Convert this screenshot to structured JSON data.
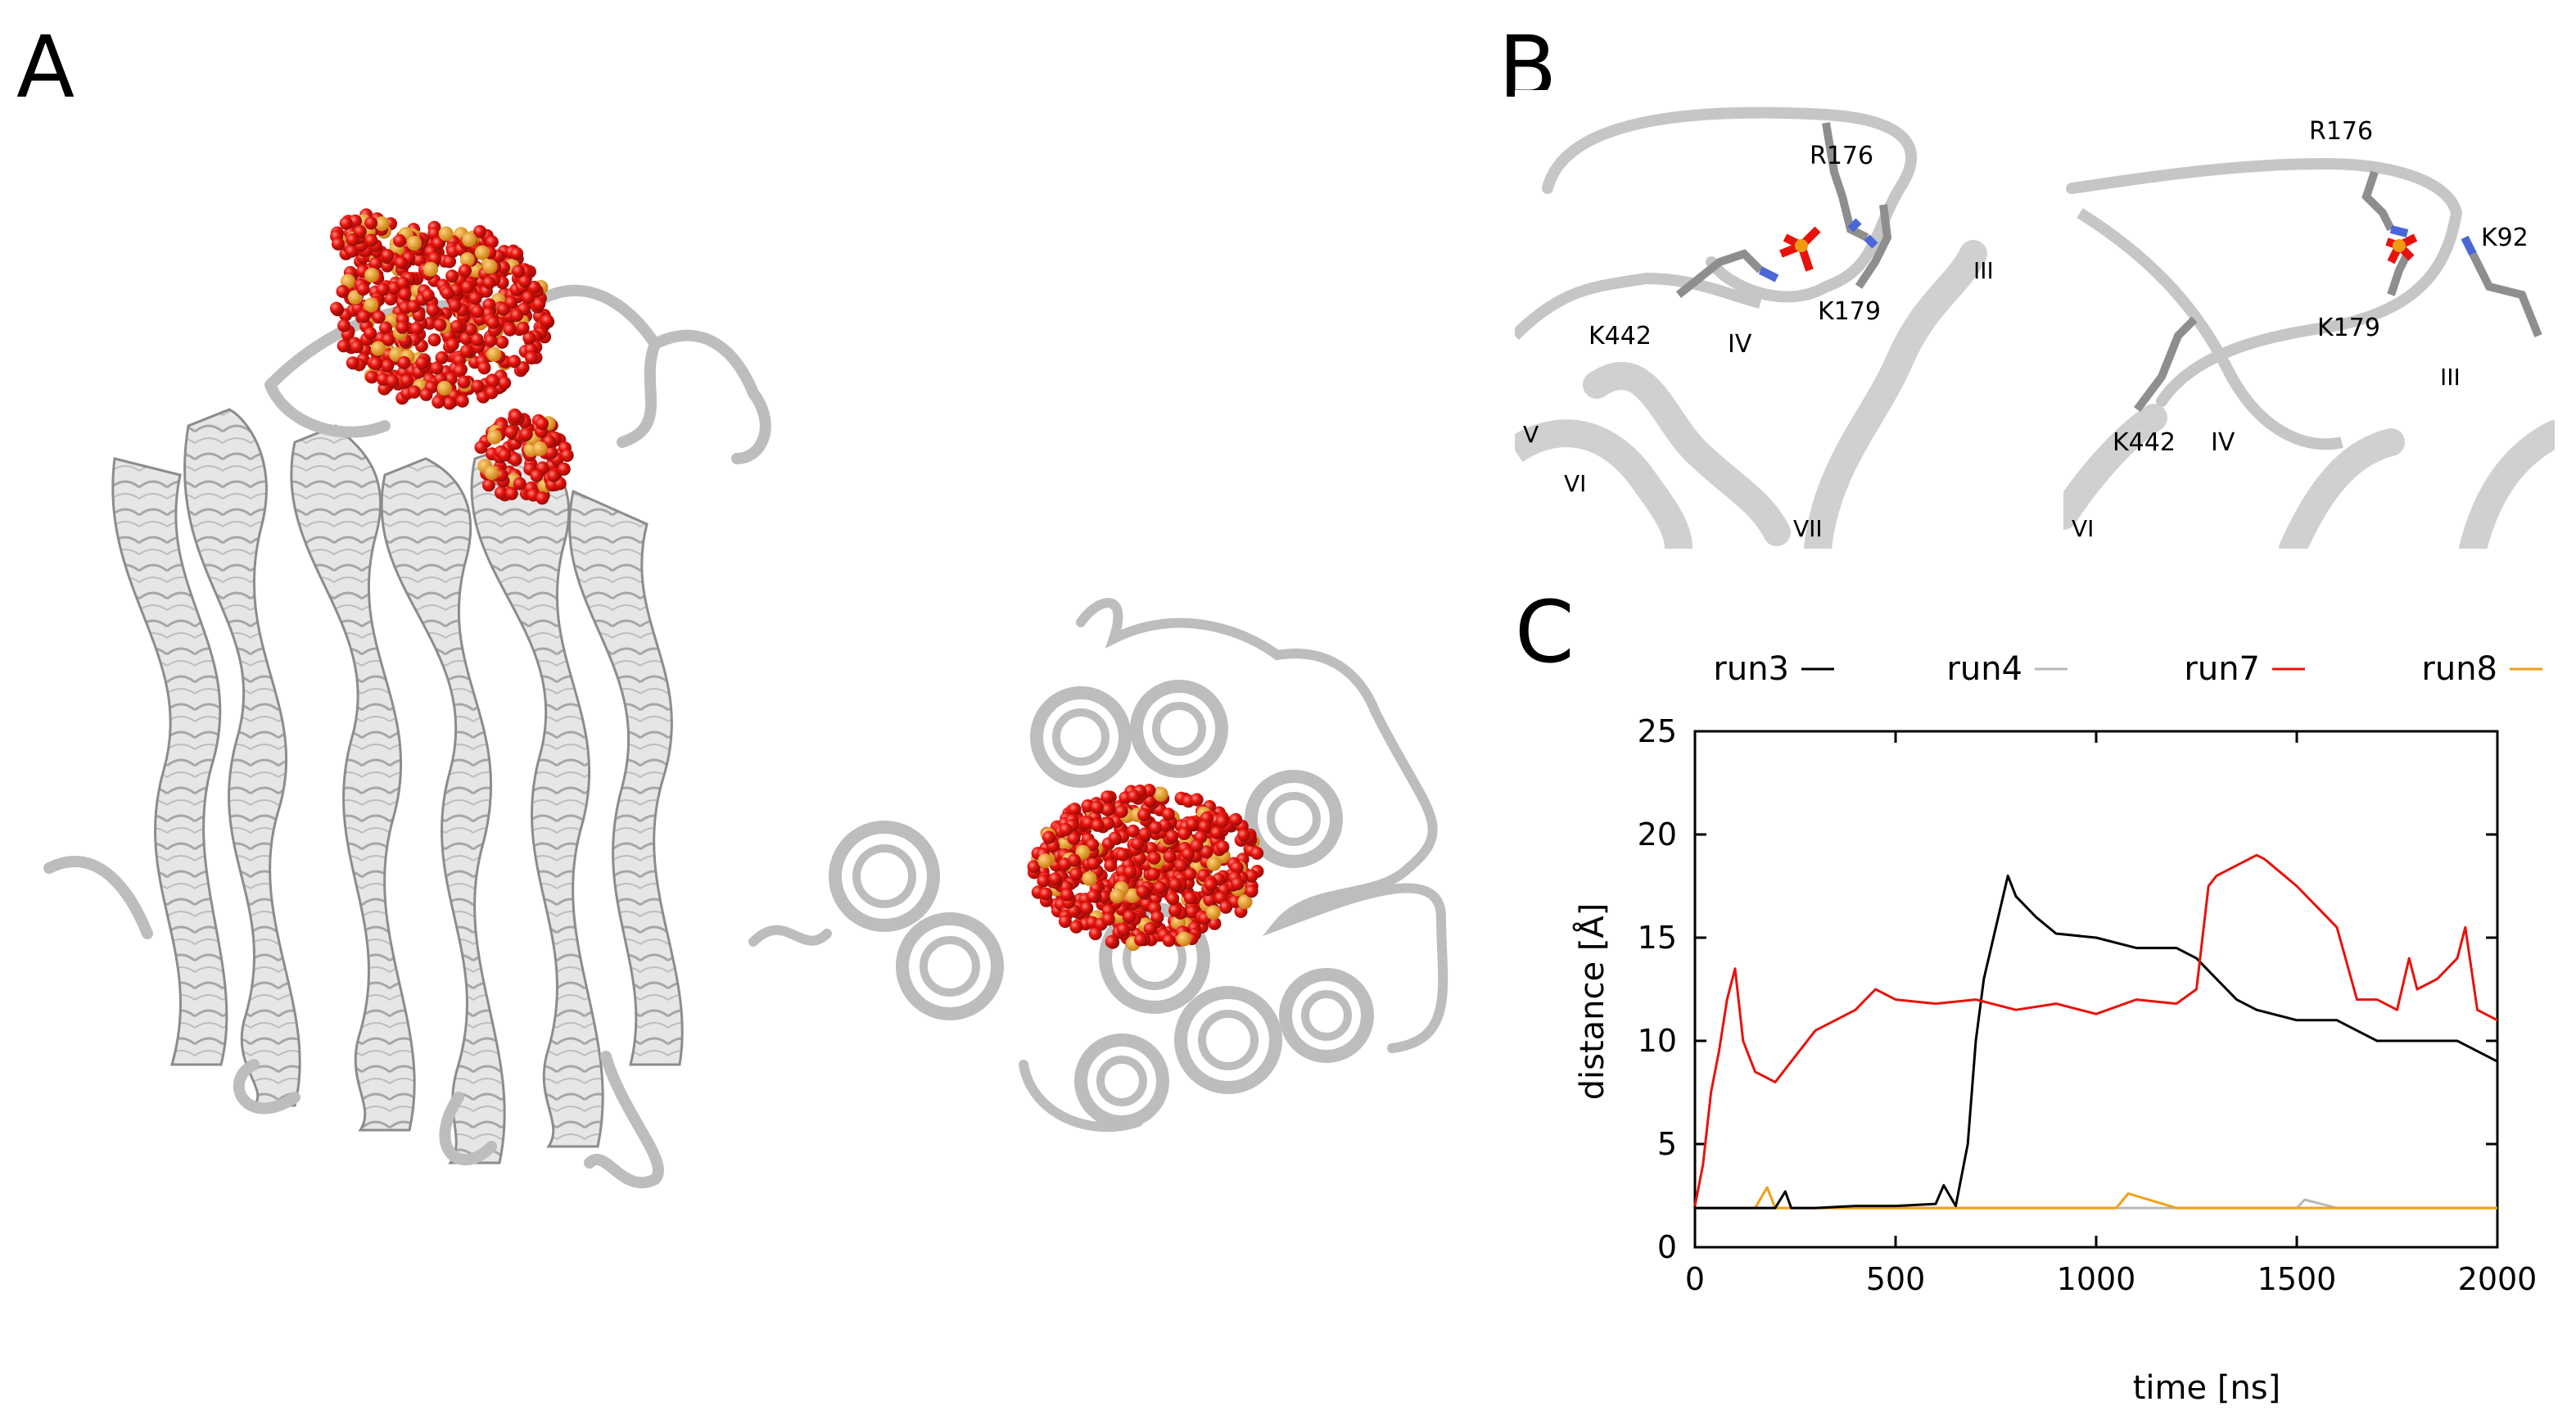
{
  "panels": {
    "a": {
      "letter": "A"
    },
    "b": {
      "letter": "B",
      "left_labels": [
        "R176",
        "K442",
        "K179",
        "IV",
        "III",
        "V",
        "VI",
        "VII"
      ],
      "right_labels": [
        "R176",
        "K92",
        "K179",
        "III",
        "K442",
        "IV",
        "VI"
      ]
    },
    "c": {
      "letter": "C"
    }
  },
  "colors": {
    "helix": "#e6e6e6",
    "helix_edge": "#8c8c8c",
    "oxygen": "#e8120c",
    "phosphorus": "#f09a12",
    "nitrogen": "#4a66d8",
    "carbon": "#8e8e8e"
  },
  "chart_data": {
    "type": "line",
    "title": "",
    "xlabel": "time [ns]",
    "ylabel": "distance [Å]",
    "xlim": [
      0,
      2000
    ],
    "ylim": [
      0,
      25
    ],
    "xticks": [
      0,
      500,
      1000,
      1500,
      2000
    ],
    "yticks": [
      0,
      5,
      10,
      15,
      20,
      25
    ],
    "grid": false,
    "legend_position": "top",
    "series": [
      {
        "name": "run3",
        "color": "#000000",
        "x": [
          0,
          100,
          200,
          225,
          240,
          300,
          400,
          500,
          600,
          620,
          650,
          680,
          700,
          720,
          750,
          780,
          800,
          850,
          900,
          1000,
          1100,
          1200,
          1250,
          1300,
          1350,
          1400,
          1500,
          1600,
          1650,
          1700,
          1800,
          1900,
          1950,
          2000
        ],
        "y": [
          1.9,
          1.9,
          1.9,
          2.7,
          1.9,
          1.9,
          2.0,
          2.0,
          2.1,
          3.0,
          2.0,
          5.0,
          10.0,
          13.0,
          15.5,
          18.0,
          17.0,
          16.0,
          15.2,
          15.0,
          14.5,
          14.5,
          14.0,
          13.0,
          12.0,
          11.5,
          11.0,
          11.0,
          10.5,
          10.0,
          10.0,
          10.0,
          9.5,
          9.0
        ]
      },
      {
        "name": "run4",
        "color": "#b8b8b8",
        "x": [
          0,
          200,
          400,
          600,
          800,
          1000,
          1200,
          1400,
          1500,
          1520,
          1600,
          1800,
          2000
        ],
        "y": [
          1.9,
          1.9,
          1.9,
          1.9,
          1.9,
          1.9,
          1.9,
          1.9,
          1.9,
          2.3,
          1.9,
          1.9,
          1.9
        ]
      },
      {
        "name": "run7",
        "color": "#e8120c",
        "x": [
          0,
          20,
          40,
          60,
          80,
          100,
          120,
          150,
          200,
          300,
          400,
          450,
          500,
          600,
          700,
          800,
          900,
          1000,
          1100,
          1200,
          1250,
          1280,
          1300,
          1350,
          1400,
          1420,
          1500,
          1550,
          1600,
          1650,
          1700,
          1750,
          1780,
          1800,
          1850,
          1900,
          1920,
          1950,
          2000
        ],
        "y": [
          2.0,
          4.0,
          7.5,
          9.5,
          12.0,
          13.5,
          10.0,
          8.5,
          8.0,
          10.5,
          11.5,
          12.5,
          12.0,
          11.8,
          12.0,
          11.5,
          11.8,
          11.3,
          12.0,
          11.8,
          12.5,
          17.5,
          18.0,
          18.5,
          19.0,
          18.8,
          17.5,
          16.5,
          15.5,
          12.0,
          12.0,
          11.5,
          14.0,
          12.5,
          13.0,
          14.0,
          15.5,
          11.5,
          11.0
        ]
      },
      {
        "name": "run8",
        "color": "#f0a018",
        "x": [
          0,
          150,
          180,
          200,
          400,
          600,
          800,
          1000,
          1050,
          1080,
          1200,
          1400,
          1600,
          1800,
          2000
        ],
        "y": [
          1.9,
          1.9,
          2.9,
          1.9,
          1.9,
          1.9,
          1.9,
          1.9,
          1.9,
          2.6,
          1.9,
          1.9,
          1.9,
          1.9,
          1.9
        ]
      }
    ]
  }
}
